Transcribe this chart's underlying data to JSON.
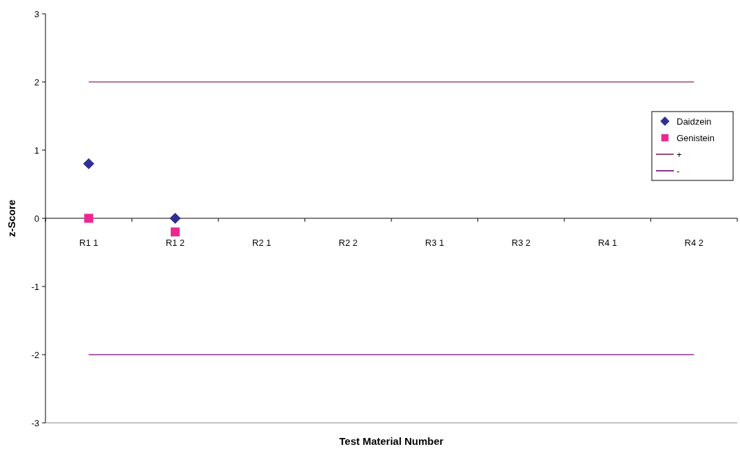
{
  "chart_data": {
    "type": "scatter",
    "xlabel": "Test Material Number",
    "ylabel": "z-Score",
    "categories": [
      "R1 1",
      "R1 2",
      "R2 1",
      "R2 2",
      "R3 1",
      "R3 2",
      "R4 1",
      "R4 2"
    ],
    "series": [
      {
        "name": "Daidzein",
        "color": "#2e3192",
        "marker": "diamond",
        "values": [
          0.8,
          0,
          null,
          null,
          null,
          null,
          null,
          null
        ]
      },
      {
        "name": "Genistein",
        "color": "#ec2890",
        "marker": "square",
        "values": [
          0,
          -0.2,
          null,
          null,
          null,
          null,
          null,
          null
        ]
      },
      {
        "name": "+",
        "type": "line",
        "color": "#a0457a",
        "marker": "none",
        "values": [
          2,
          2,
          2,
          2,
          2,
          2,
          2,
          2
        ]
      },
      {
        "name": "-",
        "type": "line",
        "color": "#8e2a98",
        "marker": "none",
        "values": [
          -2,
          -2,
          -2,
          -2,
          -2,
          -2,
          -2,
          -2
        ]
      }
    ],
    "ylim": [
      -3,
      3
    ],
    "yticks": [
      -3,
      -2,
      -1,
      0,
      1,
      2,
      3
    ],
    "grid": false,
    "legend": "right"
  }
}
